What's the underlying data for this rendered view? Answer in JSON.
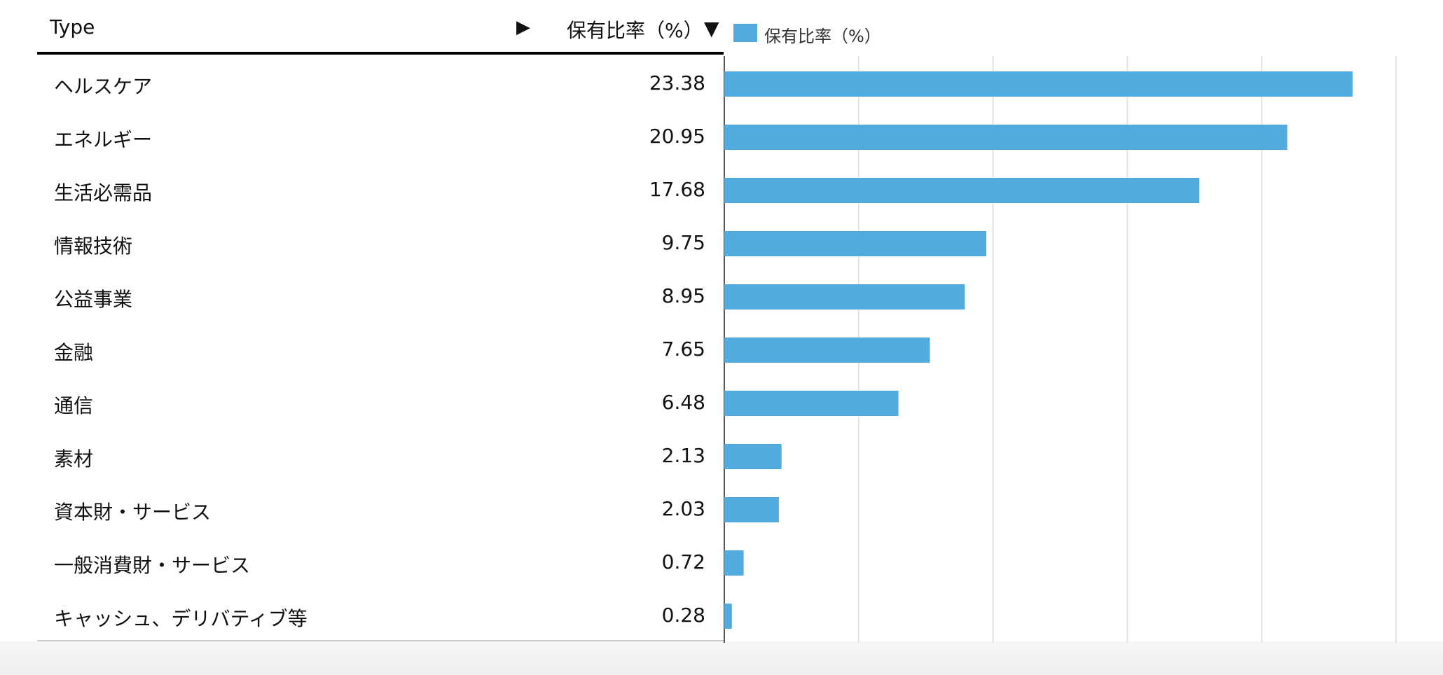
{
  "table": {
    "header_type": "Type",
    "header_expand_icon": "triangle-right-icon",
    "header_value": "保有比率（%）",
    "header_sort_icon": "triangle-down-icon"
  },
  "chart_data": {
    "type": "bar",
    "orientation": "horizontal",
    "categories": [
      "ヘルスケア",
      "エネルギー",
      "生活必需品",
      "情報技術",
      "公益事業",
      "金融",
      "通信",
      "素材",
      "資本財・サービス",
      "一般消費財・サービス",
      "キャッシュ、デリバティブ等"
    ],
    "series": [
      {
        "name": "保有比率（%）",
        "values": [
          23.38,
          20.95,
          17.68,
          9.75,
          8.95,
          7.65,
          6.48,
          2.13,
          2.03,
          0.72,
          0.28
        ]
      }
    ],
    "value_labels": [
      "23.38",
      "20.95",
      "17.68",
      "9.75",
      "8.95",
      "7.65",
      "6.48",
      "2.13",
      "2.03",
      "0.72",
      "0.28"
    ],
    "xlim": [
      0,
      25
    ],
    "x_gridlines": [
      5,
      10,
      15,
      20,
      25
    ],
    "grid": true,
    "legend": "top-left",
    "bar_color": "#52aade",
    "title": "",
    "xlabel": "",
    "ylabel": ""
  }
}
